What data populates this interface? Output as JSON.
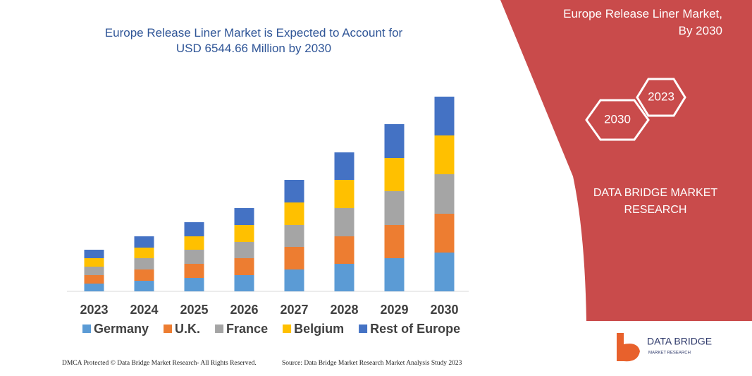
{
  "chart_data": {
    "type": "stacked_bar",
    "title": "Europe Release Liner Market is Expected to Account for USD 6544.66 Million by 2030",
    "categories": [
      "2023",
      "2024",
      "2025",
      "2026",
      "2027",
      "2028",
      "2029",
      "2030"
    ],
    "series": [
      {
        "name": "Germany",
        "color": "#5b9bd5",
        "values": [
          11,
          15,
          19,
          23,
          31,
          39,
          47,
          55
        ]
      },
      {
        "name": "U.K.",
        "color": "#ed7d31",
        "values": [
          12,
          16,
          20,
          24,
          32,
          39,
          47,
          55
        ]
      },
      {
        "name": "France",
        "color": "#a5a5a5",
        "values": [
          12,
          16,
          20,
          23,
          31,
          40,
          48,
          56
        ]
      },
      {
        "name": "Belgium",
        "color": "#ffc000",
        "values": [
          12,
          15,
          19,
          24,
          32,
          40,
          47,
          55
        ]
      },
      {
        "name": "Rest of Europe",
        "color": "#4472c4",
        "values": [
          12,
          16,
          20,
          24,
          32,
          39,
          48,
          55
        ]
      }
    ],
    "legend": "bottom"
  },
  "panel": {
    "title": "Europe Release Liner Market, By 2030",
    "hex_1": "2030",
    "hex_2": "2023",
    "brand": "DATA BRIDGE MARKET RESEARCH"
  },
  "logo": {
    "name": "DATA BRIDGE",
    "tagline": "MARKET RESEARCH"
  },
  "footer": {
    "left": "DMCA Protected © Data Bridge Market Research- All Rights Reserved.",
    "right": "Source: Data Bridge Market Research  Market Analysis Study 2023"
  }
}
